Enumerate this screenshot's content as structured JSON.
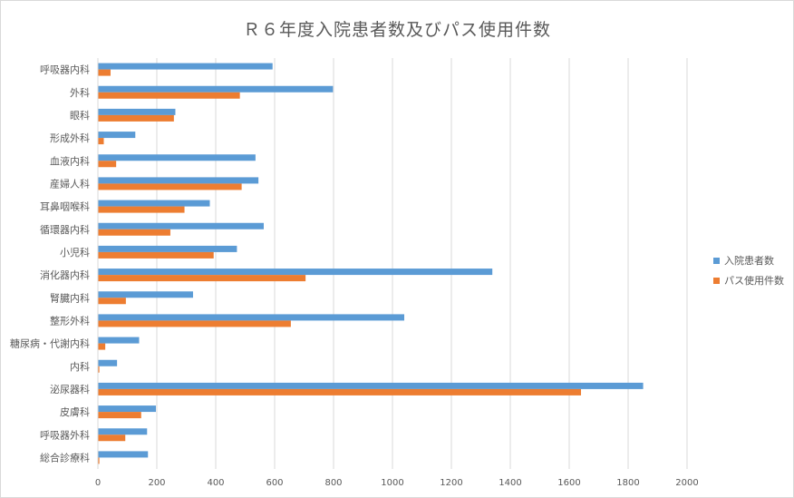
{
  "chart_data": {
    "type": "bar",
    "orientation": "horizontal",
    "title": "Ｒ６年度入院患者数及びパス使用件数",
    "categories": [
      "呼吸器内科",
      "外科",
      "眼科",
      "形成外科",
      "血液内科",
      "産婦人科",
      "耳鼻咽喉科",
      "循環器内科",
      "小児科",
      "消化器内科",
      "腎臓内科",
      "整形外科",
      "糖尿病・代謝内科",
      "内科",
      "泌尿器科",
      "皮膚科",
      "呼吸器外科",
      "総合診療科"
    ],
    "series": [
      {
        "name": "入院患者数",
        "color": "#5b9bd5",
        "values": [
          593,
          798,
          263,
          127,
          535,
          545,
          380,
          563,
          472,
          1339,
          323,
          1040,
          140,
          65,
          1851,
          197,
          167,
          170
        ]
      },
      {
        "name": "パス使用件数",
        "color": "#ed7d31",
        "values": [
          43,
          482,
          258,
          20,
          62,
          488,
          294,
          246,
          393,
          705,
          95,
          655,
          25,
          5,
          1640,
          147,
          93,
          5
        ]
      }
    ],
    "xlim": [
      0,
      2000
    ],
    "xticks": [
      0,
      200,
      400,
      600,
      800,
      1000,
      1200,
      1400,
      1600,
      1800,
      2000
    ],
    "grid": true,
    "legend": "right"
  }
}
